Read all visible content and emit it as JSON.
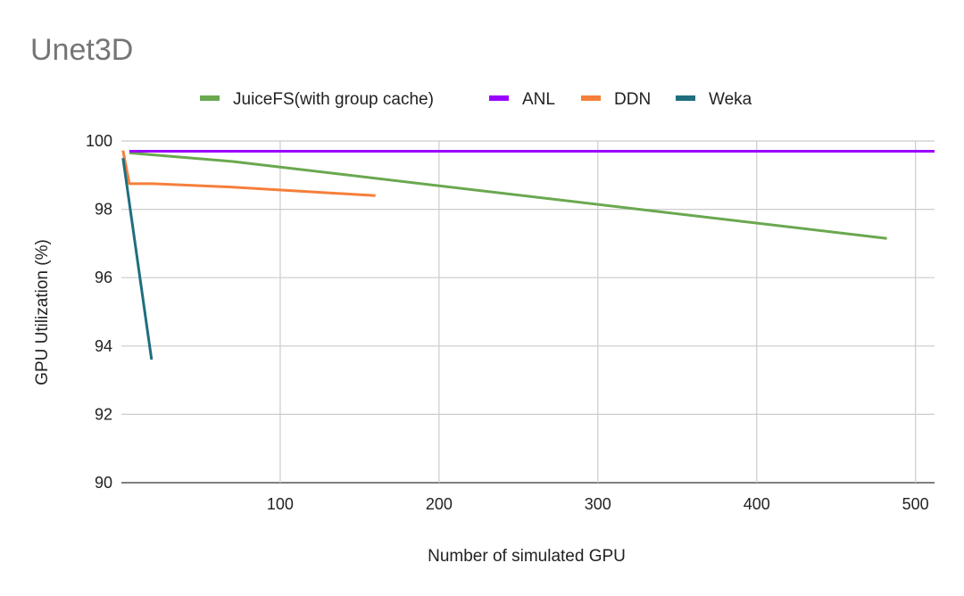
{
  "chart_data": {
    "type": "line",
    "title": "Unet3D",
    "xlabel": "Number of simulated GPU",
    "ylabel": "GPU Utilization (%)",
    "xlim": [
      0,
      512
    ],
    "ylim": [
      90,
      100
    ],
    "xticks": [
      100,
      200,
      300,
      400,
      500
    ],
    "yticks": [
      90,
      92,
      94,
      96,
      98,
      100
    ],
    "grid": true,
    "legend_position": "top",
    "series": [
      {
        "name": "JuiceFS(with group cache)",
        "color": "#6aa84f",
        "x": [
          5,
          70,
          482
        ],
        "y": [
          99.65,
          99.4,
          97.15
        ]
      },
      {
        "name": "ANL",
        "color": "#9900ff",
        "x": [
          5,
          512
        ],
        "y": [
          99.7,
          99.7
        ]
      },
      {
        "name": "DDN",
        "color": "#f57f3a",
        "x": [
          1,
          5,
          20,
          70,
          160
        ],
        "y": [
          99.72,
          98.75,
          98.75,
          98.65,
          98.4
        ]
      },
      {
        "name": "Weka",
        "color": "#1f6e7f",
        "x": [
          1,
          19
        ],
        "y": [
          99.5,
          93.6
        ]
      }
    ]
  }
}
